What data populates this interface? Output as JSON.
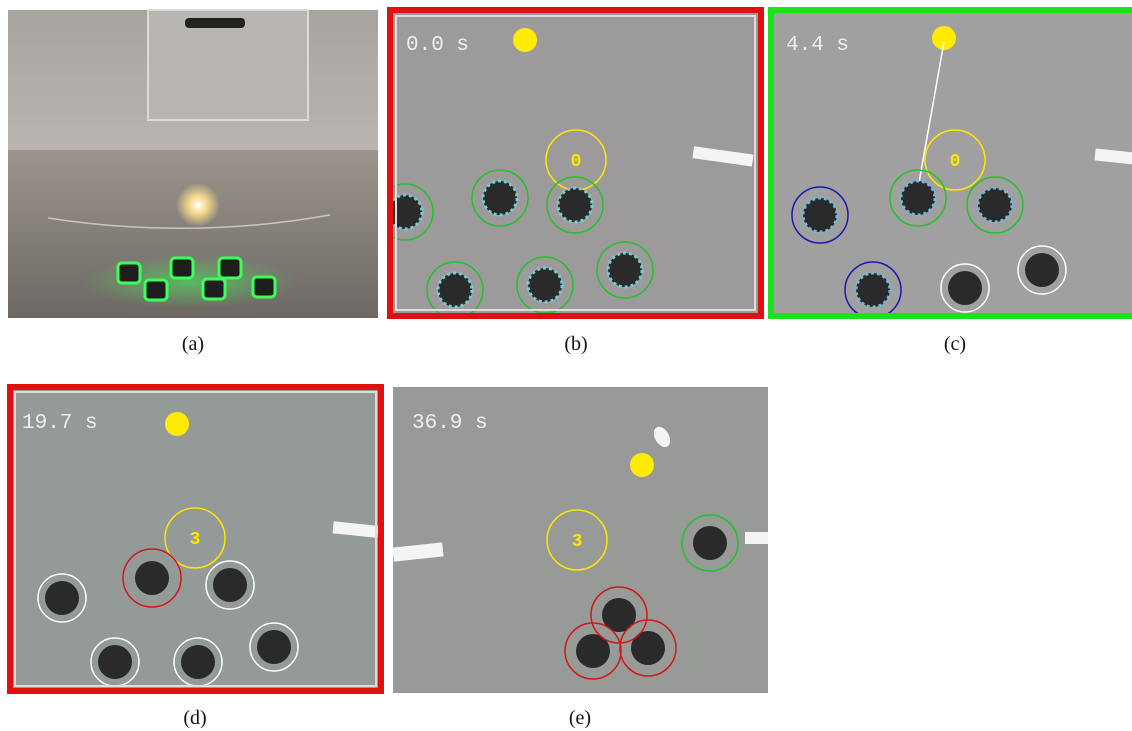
{
  "panels": [
    {
      "caption": "(a)"
    },
    {
      "caption": "(b)",
      "time": "0.0 s",
      "marker": "0"
    },
    {
      "caption": "(c)",
      "time": "4.4 s",
      "marker": "0"
    },
    {
      "caption": "(d)",
      "time": "19.7 s",
      "marker": "3"
    },
    {
      "caption": "(e)",
      "time": "36.9 s",
      "marker": "3"
    }
  ]
}
